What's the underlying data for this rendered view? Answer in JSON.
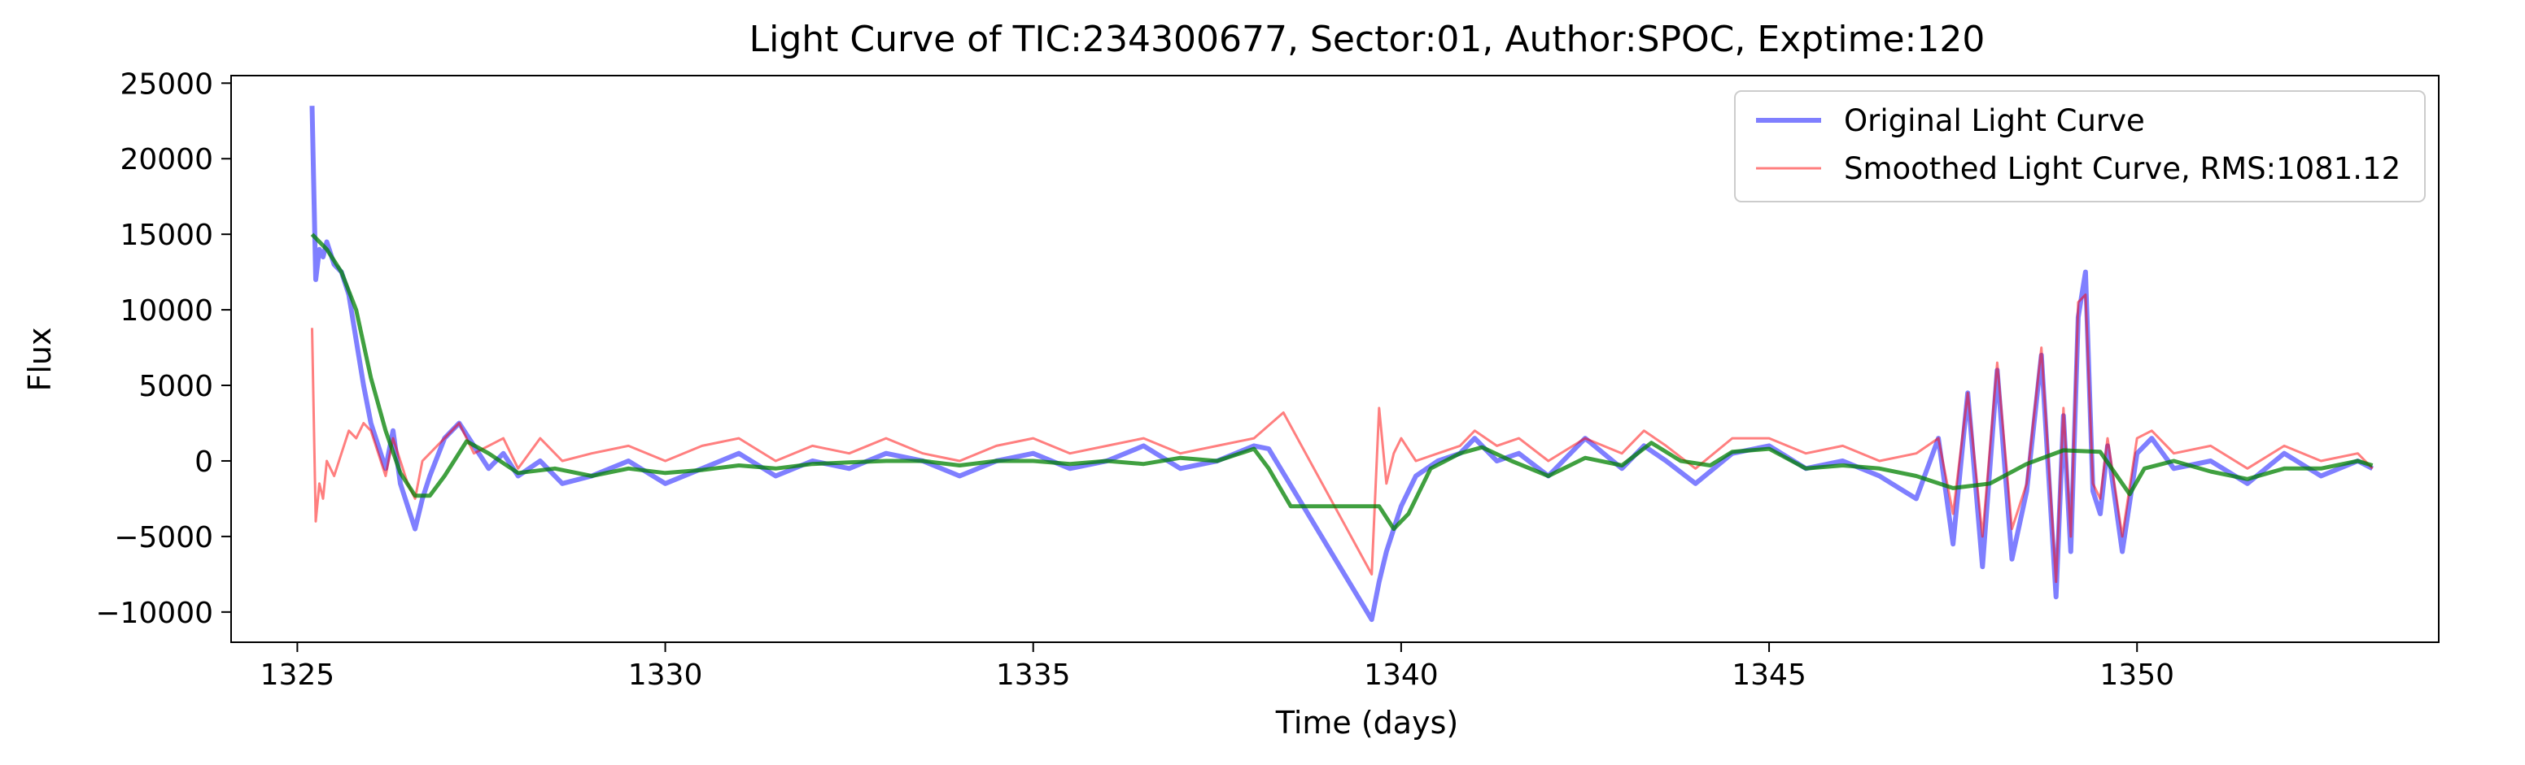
{
  "chart_data": {
    "type": "line",
    "title": "Light Curve of TIC:234300677, Sector:01, Author:SPOC, Exptime:120",
    "xlabel": "Time (days)",
    "ylabel": "Flux",
    "xlim": [
      1324.1,
      1354.1
    ],
    "ylim": [
      -12000,
      25500
    ],
    "xticks": [
      1325,
      1330,
      1335,
      1340,
      1345,
      1350
    ],
    "yticks": [
      -10000,
      -5000,
      0,
      5000,
      10000,
      15000,
      20000,
      25000
    ],
    "grid": false,
    "legend_position": "top-right",
    "series": [
      {
        "name": "Original Light Curve",
        "color": "#0000ff",
        "opacity": 0.5,
        "x": [
          1325.2,
          1325.25,
          1325.3,
          1325.35,
          1325.4,
          1325.5,
          1325.6,
          1325.7,
          1325.8,
          1325.9,
          1326.0,
          1326.1,
          1326.2,
          1326.3,
          1326.4,
          1326.5,
          1326.6,
          1326.7,
          1326.8,
          1327.0,
          1327.2,
          1327.4,
          1327.6,
          1327.8,
          1328.0,
          1328.3,
          1328.6,
          1329.0,
          1329.5,
          1330.0,
          1330.5,
          1331.0,
          1331.5,
          1332.0,
          1332.5,
          1333.0,
          1333.5,
          1334.0,
          1334.5,
          1335.0,
          1335.5,
          1336.0,
          1336.5,
          1337.0,
          1337.5,
          1338.0,
          1338.2,
          1339.6,
          1339.7,
          1339.8,
          1339.9,
          1340.0,
          1340.2,
          1340.5,
          1340.8,
          1341.0,
          1341.3,
          1341.6,
          1342.0,
          1342.5,
          1343.0,
          1343.3,
          1343.6,
          1344.0,
          1344.5,
          1345.0,
          1345.5,
          1346.0,
          1346.5,
          1347.0,
          1347.3,
          1347.5,
          1347.7,
          1347.9,
          1348.1,
          1348.3,
          1348.5,
          1348.7,
          1348.9,
          1349.0,
          1349.1,
          1349.2,
          1349.3,
          1349.4,
          1349.5,
          1349.6,
          1349.8,
          1350.0,
          1350.2,
          1350.5,
          1351.0,
          1351.5,
          1352.0,
          1352.5,
          1353.0,
          1353.2
        ],
        "values": [
          23500,
          12000,
          14000,
          13500,
          14500,
          13000,
          12500,
          11000,
          8000,
          5000,
          2500,
          1000,
          -500,
          2000,
          -1500,
          -3000,
          -4500,
          -2500,
          -1000,
          1500,
          2500,
          1000,
          -500,
          500,
          -1000,
          0,
          -1500,
          -1000,
          0,
          -1500,
          -500,
          500,
          -1000,
          0,
          -500,
          500,
          0,
          -1000,
          0,
          500,
          -500,
          0,
          1000,
          -500,
          0,
          1000,
          800,
          -10500,
          -8000,
          -6000,
          -4500,
          -3000,
          -1000,
          0,
          500,
          1500,
          0,
          500,
          -1000,
          1500,
          -500,
          1000,
          0,
          -1500,
          500,
          1000,
          -500,
          0,
          -1000,
          -2500,
          1500,
          -5500,
          4500,
          -7000,
          6000,
          -6500,
          -2000,
          7000,
          -9000,
          3000,
          -6000,
          9500,
          12500,
          -2000,
          -3500,
          1000,
          -6000,
          500,
          1500,
          -500,
          0,
          -1500,
          500,
          -1000,
          0,
          -500
        ]
      },
      {
        "name": "Smoothed Light Curve, RMS:1081.12",
        "color": "#ff0000",
        "opacity": 0.5,
        "x": [
          1325.2,
          1325.25,
          1325.3,
          1325.35,
          1325.4,
          1325.5,
          1325.6,
          1325.7,
          1325.8,
          1325.9,
          1326.0,
          1326.1,
          1326.2,
          1326.3,
          1326.4,
          1326.5,
          1326.6,
          1326.7,
          1326.8,
          1327.0,
          1327.2,
          1327.4,
          1327.6,
          1327.8,
          1328.0,
          1328.3,
          1328.6,
          1329.0,
          1329.5,
          1330.0,
          1330.5,
          1331.0,
          1331.5,
          1332.0,
          1332.5,
          1333.0,
          1333.5,
          1334.0,
          1334.5,
          1335.0,
          1335.5,
          1336.0,
          1336.5,
          1337.0,
          1337.5,
          1338.0,
          1338.4,
          1339.6,
          1339.7,
          1339.8,
          1339.9,
          1340.0,
          1340.2,
          1340.5,
          1340.8,
          1341.0,
          1341.3,
          1341.6,
          1342.0,
          1342.5,
          1343.0,
          1343.3,
          1343.6,
          1344.0,
          1344.5,
          1345.0,
          1345.5,
          1346.0,
          1346.5,
          1347.0,
          1347.3,
          1347.5,
          1347.7,
          1347.9,
          1348.1,
          1348.3,
          1348.5,
          1348.7,
          1348.9,
          1349.0,
          1349.1,
          1349.2,
          1349.3,
          1349.4,
          1349.5,
          1349.6,
          1349.8,
          1350.0,
          1350.2,
          1350.5,
          1351.0,
          1351.5,
          1352.0,
          1352.5,
          1353.0,
          1353.2
        ],
        "values": [
          8800,
          -4000,
          -1500,
          -2500,
          0,
          -1000,
          500,
          2000,
          1500,
          2500,
          2000,
          500,
          -1000,
          1500,
          0,
          -1500,
          -2500,
          0,
          500,
          1500,
          2500,
          500,
          1000,
          1500,
          -500,
          1500,
          0,
          500,
          1000,
          0,
          1000,
          1500,
          0,
          1000,
          500,
          1500,
          500,
          0,
          1000,
          1500,
          500,
          1000,
          1500,
          500,
          1000,
          1500,
          3200,
          -7500,
          3500,
          -1500,
          500,
          1500,
          0,
          500,
          1000,
          2000,
          1000,
          1500,
          0,
          1500,
          500,
          2000,
          1000,
          -500,
          1500,
          1500,
          500,
          1000,
          0,
          500,
          1500,
          -3500,
          4500,
          -5000,
          6500,
          -4500,
          -1500,
          7500,
          -8000,
          3500,
          -5000,
          10500,
          11000,
          -1500,
          -2500,
          1500,
          -5000,
          1500,
          2000,
          500,
          1000,
          -500,
          1000,
          0,
          500,
          -500
        ]
      },
      {
        "name": "",
        "color": "#008000",
        "opacity": 0.75,
        "x": [
          1325.2,
          1325.4,
          1325.6,
          1325.8,
          1326.0,
          1326.2,
          1326.4,
          1326.6,
          1326.8,
          1327.0,
          1327.3,
          1327.6,
          1328.0,
          1328.5,
          1329.0,
          1329.5,
          1330.0,
          1330.5,
          1331.0,
          1331.5,
          1332.0,
          1332.5,
          1333.0,
          1333.5,
          1334.0,
          1334.5,
          1335.0,
          1335.5,
          1336.0,
          1336.5,
          1337.0,
          1337.5,
          1338.0,
          1338.2,
          1338.5,
          1339.0,
          1339.5,
          1339.7,
          1339.9,
          1340.1,
          1340.4,
          1340.8,
          1341.1,
          1341.5,
          1342.0,
          1342.5,
          1343.0,
          1343.4,
          1343.8,
          1344.2,
          1344.5,
          1345.0,
          1345.5,
          1346.0,
          1346.5,
          1347.0,
          1347.5,
          1348.0,
          1348.5,
          1349.0,
          1349.5,
          1349.9,
          1350.1,
          1350.5,
          1351.0,
          1351.5,
          1352.0,
          1352.5,
          1353.0,
          1353.2
        ],
        "values": [
          15000,
          14000,
          12500,
          10000,
          5500,
          2000,
          -800,
          -2300,
          -2300,
          -1000,
          1300,
          500,
          -800,
          -500,
          -1000,
          -500,
          -800,
          -600,
          -300,
          -500,
          -200,
          -100,
          0,
          0,
          -300,
          0,
          0,
          -200,
          0,
          -200,
          200,
          0,
          800,
          -500,
          -3000,
          -3000,
          -3000,
          -3000,
          -4500,
          -3500,
          -500,
          500,
          900,
          0,
          -1000,
          200,
          -300,
          1200,
          0,
          -300,
          600,
          800,
          -500,
          -300,
          -500,
          -1000,
          -1800,
          -1500,
          -200,
          700,
          600,
          -2200,
          -500,
          0,
          -700,
          -1200,
          -500,
          -500,
          0,
          -300
        ]
      }
    ]
  }
}
